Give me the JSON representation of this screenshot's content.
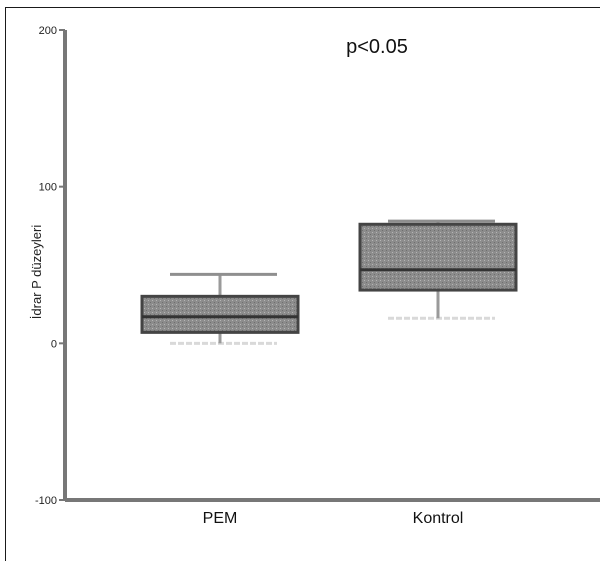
{
  "chart_data": {
    "type": "box",
    "title": "",
    "annotation": "p<0.05",
    "ylabel": "İdrar P düzeyleri",
    "xlabel": "",
    "ylim": [
      -100,
      200
    ],
    "yticks": [
      -100,
      0,
      100,
      200
    ],
    "ytick_labels": [
      "-100",
      "0",
      "100",
      "200"
    ],
    "grid": false,
    "categories": [
      "PEM",
      "Kontrol"
    ],
    "boxes": [
      {
        "label": "PEM",
        "min": 0,
        "q1": 7,
        "median": 17,
        "q3": 30,
        "max": 44
      },
      {
        "label": "Kontrol",
        "min": 16,
        "q1": 34,
        "median": 47,
        "q3": 76,
        "max": 78
      }
    ],
    "colors": {
      "box_fill": "#8c8c8c",
      "box_edge": "#444444",
      "axis": "#777777",
      "whisker_light": "#d9d9d9"
    }
  }
}
